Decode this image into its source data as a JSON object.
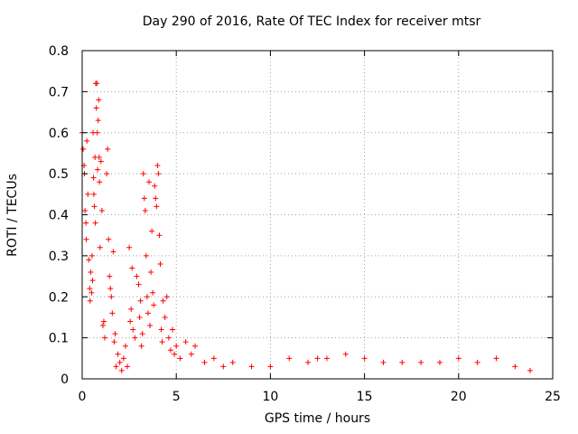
{
  "chart_data": {
    "type": "scatter",
    "title": "Day 290 of 2016, Rate Of TEC Index for receiver mtsr",
    "xlabel": "GPS time / hours",
    "ylabel": "ROTI / TECUs",
    "xlim": [
      0,
      25
    ],
    "ylim": [
      0,
      0.8
    ],
    "xticks": [
      "0",
      "5",
      "10",
      "15",
      "20",
      "25"
    ],
    "yticks": [
      "0",
      "0.1",
      "0.2",
      "0.3",
      "0.4",
      "0.5",
      "0.6",
      "0.7",
      "0.8"
    ],
    "grid": true,
    "marker": "+",
    "color": "#ff0000",
    "series": [
      {
        "name": "ROTI",
        "points": [
          [
            0.0,
            0.6
          ],
          [
            0.05,
            0.56
          ],
          [
            0.1,
            0.52
          ],
          [
            0.12,
            0.5
          ],
          [
            0.15,
            0.41
          ],
          [
            0.2,
            0.38
          ],
          [
            0.22,
            0.34
          ],
          [
            0.25,
            0.58
          ],
          [
            0.3,
            0.45
          ],
          [
            0.35,
            0.29
          ],
          [
            0.4,
            0.22
          ],
          [
            0.42,
            0.19
          ],
          [
            0.45,
            0.26
          ],
          [
            0.5,
            0.21
          ],
          [
            0.52,
            0.3
          ],
          [
            0.55,
            0.24
          ],
          [
            0.58,
            0.6
          ],
          [
            0.6,
            0.49
          ],
          [
            0.62,
            0.45
          ],
          [
            0.65,
            0.42
          ],
          [
            0.68,
            0.54
          ],
          [
            0.7,
            0.38
          ],
          [
            0.72,
            0.72
          ],
          [
            0.75,
            0.66
          ],
          [
            0.78,
            0.72
          ],
          [
            0.8,
            0.6
          ],
          [
            0.82,
            0.51
          ],
          [
            0.85,
            0.63
          ],
          [
            0.88,
            0.68
          ],
          [
            0.9,
            0.54
          ],
          [
            0.92,
            0.48
          ],
          [
            0.95,
            0.32
          ],
          [
            1.0,
            0.53
          ],
          [
            1.05,
            0.41
          ],
          [
            1.1,
            0.13
          ],
          [
            1.15,
            0.14
          ],
          [
            1.2,
            0.1
          ],
          [
            1.3,
            0.5
          ],
          [
            1.35,
            0.56
          ],
          [
            1.4,
            0.34
          ],
          [
            1.45,
            0.25
          ],
          [
            1.5,
            0.22
          ],
          [
            1.55,
            0.2
          ],
          [
            1.6,
            0.16
          ],
          [
            1.65,
            0.31
          ],
          [
            1.7,
            0.09
          ],
          [
            1.75,
            0.11
          ],
          [
            1.8,
            0.03
          ],
          [
            1.9,
            0.06
          ],
          [
            2.0,
            0.04
          ],
          [
            2.1,
            0.02
          ],
          [
            2.2,
            0.05
          ],
          [
            2.3,
            0.08
          ],
          [
            2.4,
            0.03
          ],
          [
            2.5,
            0.32
          ],
          [
            2.55,
            0.14
          ],
          [
            2.6,
            0.17
          ],
          [
            2.65,
            0.27
          ],
          [
            2.7,
            0.12
          ],
          [
            2.8,
            0.1
          ],
          [
            2.9,
            0.25
          ],
          [
            3.0,
            0.23
          ],
          [
            3.05,
            0.15
          ],
          [
            3.1,
            0.19
          ],
          [
            3.15,
            0.08
          ],
          [
            3.2,
            0.11
          ],
          [
            3.25,
            0.5
          ],
          [
            3.3,
            0.44
          ],
          [
            3.35,
            0.41
          ],
          [
            3.4,
            0.3
          ],
          [
            3.45,
            0.2
          ],
          [
            3.5,
            0.16
          ],
          [
            3.55,
            0.48
          ],
          [
            3.6,
            0.13
          ],
          [
            3.65,
            0.26
          ],
          [
            3.7,
            0.36
          ],
          [
            3.75,
            0.21
          ],
          [
            3.8,
            0.18
          ],
          [
            3.85,
            0.47
          ],
          [
            3.9,
            0.44
          ],
          [
            3.95,
            0.42
          ],
          [
            4.0,
            0.52
          ],
          [
            4.05,
            0.5
          ],
          [
            4.1,
            0.35
          ],
          [
            4.15,
            0.28
          ],
          [
            4.2,
            0.12
          ],
          [
            4.25,
            0.09
          ],
          [
            4.3,
            0.19
          ],
          [
            4.4,
            0.15
          ],
          [
            4.5,
            0.2
          ],
          [
            4.6,
            0.1
          ],
          [
            4.7,
            0.07
          ],
          [
            4.8,
            0.12
          ],
          [
            4.9,
            0.06
          ],
          [
            5.0,
            0.08
          ],
          [
            5.2,
            0.05
          ],
          [
            5.5,
            0.09
          ],
          [
            5.8,
            0.06
          ],
          [
            6.0,
            0.08
          ],
          [
            6.5,
            0.04
          ],
          [
            7.0,
            0.05
          ],
          [
            7.5,
            0.03
          ],
          [
            8.0,
            0.04
          ],
          [
            9.0,
            0.03
          ],
          [
            10.0,
            0.03
          ],
          [
            11.0,
            0.05
          ],
          [
            12.0,
            0.04
          ],
          [
            12.5,
            0.05
          ],
          [
            13.0,
            0.05
          ],
          [
            14.0,
            0.06
          ],
          [
            15.0,
            0.05
          ],
          [
            16.0,
            0.04
          ],
          [
            17.0,
            0.04
          ],
          [
            18.0,
            0.04
          ],
          [
            19.0,
            0.04
          ],
          [
            20.0,
            0.05
          ],
          [
            21.0,
            0.04
          ],
          [
            22.0,
            0.05
          ],
          [
            23.0,
            0.03
          ],
          [
            23.8,
            0.02
          ]
        ]
      }
    ]
  }
}
